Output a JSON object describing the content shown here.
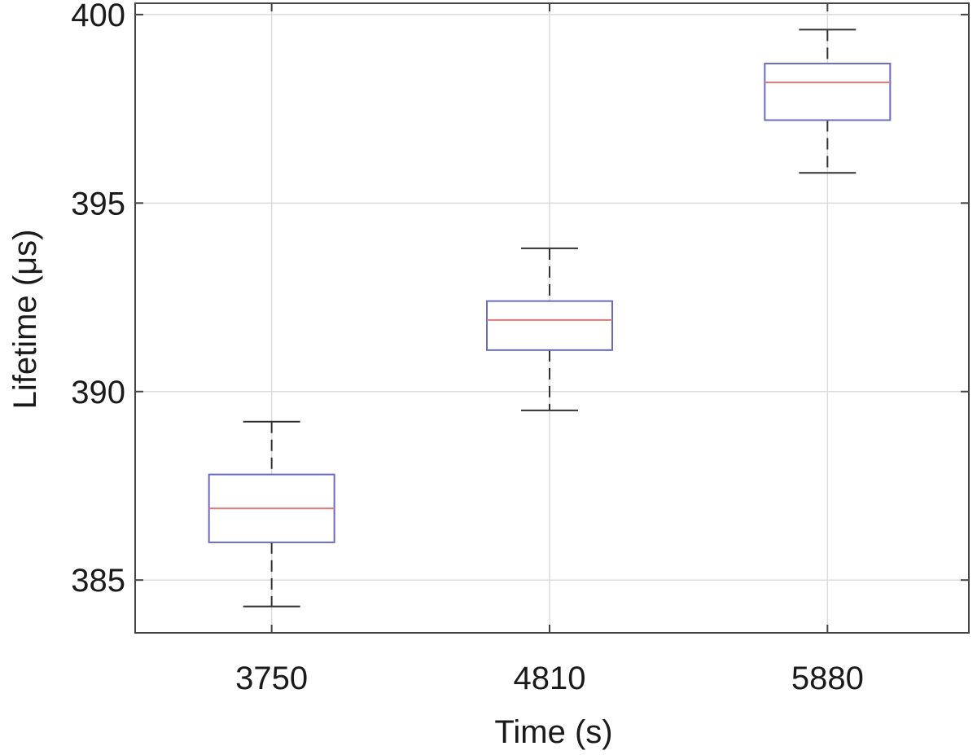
{
  "chart_data": {
    "type": "box",
    "categories": [
      "3750",
      "4810",
      "5880"
    ],
    "boxes": [
      {
        "category": "3750",
        "whisker_low": 384.3,
        "q1": 386.0,
        "median": 386.9,
        "q3": 387.8,
        "whisker_high": 389.2
      },
      {
        "category": "4810",
        "whisker_low": 389.5,
        "q1": 391.1,
        "median": 391.9,
        "q3": 392.4,
        "whisker_high": 393.8
      },
      {
        "category": "5880",
        "whisker_low": 395.8,
        "q1": 397.2,
        "median": 398.2,
        "q3": 398.7,
        "whisker_high": 399.6
      }
    ],
    "xlabel": "Time (s)",
    "ylabel": "Lifetime (μs)",
    "ylim": [
      383.6,
      400.3
    ],
    "yticks": [
      385,
      390,
      395,
      400
    ],
    "grid": true,
    "colors": {
      "box": "#6b6bc0",
      "median": "#d97a7a",
      "whisker": "#333333",
      "grid": "#dcdcdc",
      "axes": "#444444"
    }
  }
}
